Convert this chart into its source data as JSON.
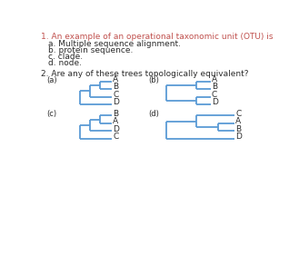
{
  "title1": "1. An example of an operational taxonomic unit (OTU) is",
  "options1": [
    "a. Multiple sequence alignment.",
    "b. protein sequence.",
    "c. clade.",
    "d. node."
  ],
  "title2": "2. Are any of these trees topologically equivalent?",
  "tree_color": "#5b9bd5",
  "text_color": "#404040",
  "orange_color": "#c0504d",
  "bg_color": "#ffffff"
}
